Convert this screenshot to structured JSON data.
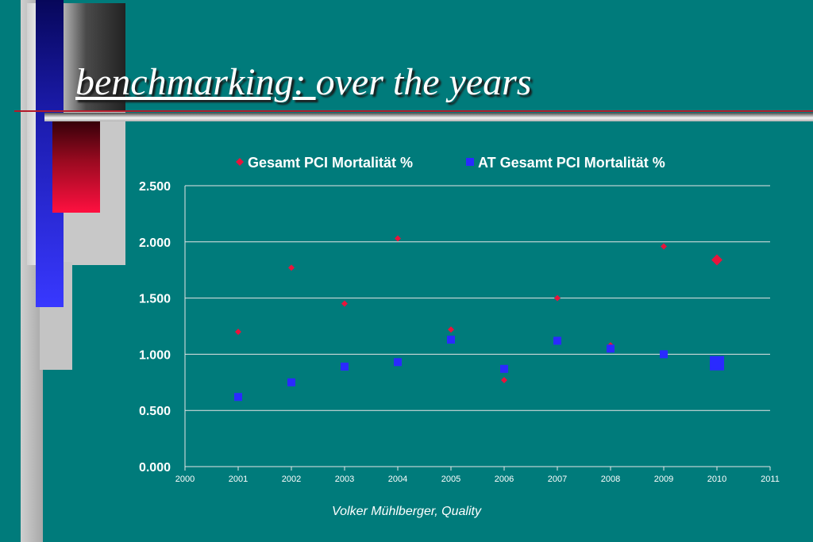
{
  "slide": {
    "title_part1": "benchmarking: ",
    "title_part2": "over the years",
    "footer": "Volker Mühlberger, Quality"
  },
  "colors": {
    "background": "#007b7b",
    "series1": "#e8143c",
    "series2": "#2a2aff",
    "text": "#ffffff",
    "gridline": "#e6e6e6"
  },
  "chart_data": {
    "type": "scatter",
    "ylim": [
      0,
      2.5
    ],
    "xlim": [
      2000,
      2011
    ],
    "y_ticks": [
      "0.000",
      "0.500",
      "1.000",
      "1.500",
      "2.000",
      "2.500"
    ],
    "x_ticks": [
      "2000",
      "2001",
      "2002",
      "2003",
      "2004",
      "2005",
      "2006",
      "2007",
      "2008",
      "2009",
      "2010",
      "2011"
    ],
    "legend_position": "top",
    "grid": true,
    "series": [
      {
        "name": "Gesamt PCI Mortalität %",
        "marker": "diamond",
        "points": [
          {
            "x": 2001,
            "y": 1.2
          },
          {
            "x": 2002,
            "y": 1.77
          },
          {
            "x": 2003,
            "y": 1.45
          },
          {
            "x": 2004,
            "y": 2.03
          },
          {
            "x": 2005,
            "y": 1.22
          },
          {
            "x": 2006,
            "y": 0.77
          },
          {
            "x": 2007,
            "y": 1.5
          },
          {
            "x": 2008,
            "y": 1.08
          },
          {
            "x": 2009,
            "y": 1.96
          },
          {
            "x": 2010,
            "y": 1.84,
            "highlight": true
          }
        ]
      },
      {
        "name": "AT Gesamt PCI Mortalität %",
        "marker": "square",
        "points": [
          {
            "x": 2001,
            "y": 0.62
          },
          {
            "x": 2002,
            "y": 0.75
          },
          {
            "x": 2003,
            "y": 0.89
          },
          {
            "x": 2004,
            "y": 0.93
          },
          {
            "x": 2005,
            "y": 1.13
          },
          {
            "x": 2006,
            "y": 0.87
          },
          {
            "x": 2007,
            "y": 1.12
          },
          {
            "x": 2008,
            "y": 1.05
          },
          {
            "x": 2009,
            "y": 1.0
          },
          {
            "x": 2010,
            "y": 0.92,
            "highlight": true
          }
        ]
      }
    ]
  }
}
